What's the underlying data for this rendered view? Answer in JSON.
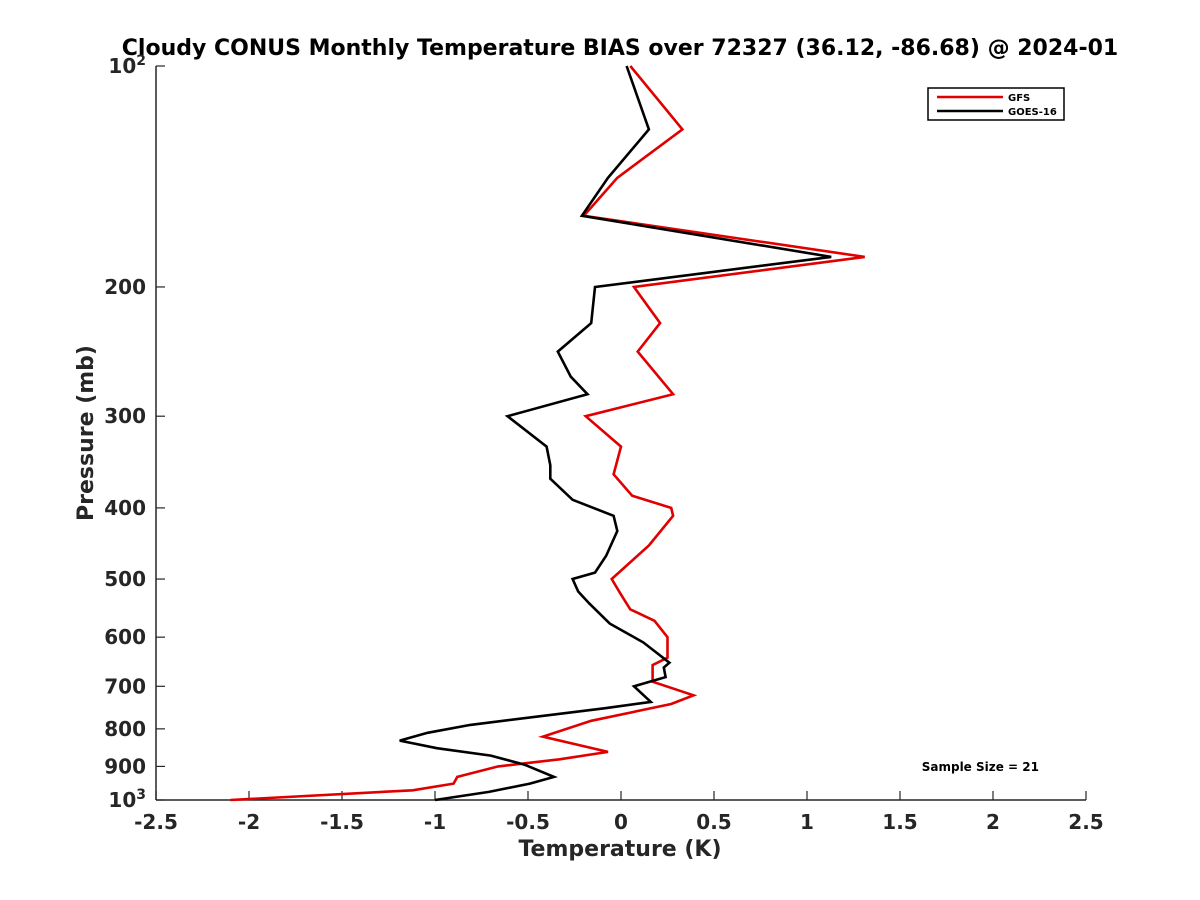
{
  "chart_data": {
    "type": "line",
    "title": "Cloudy CONUS Monthly Temperature BIAS over 72327 (36.12, -86.68) @ 2024-01",
    "xlabel": "Temperature (K)",
    "ylabel": "Pressure (mb)",
    "xlim": [
      -2.5,
      2.5
    ],
    "ylim": [
      100,
      1000
    ],
    "y_scale": "log",
    "y_reversed": true,
    "x_ticks": [
      {
        "value": -2.5,
        "label": "-2.5"
      },
      {
        "value": -2,
        "label": "-2"
      },
      {
        "value": -1.5,
        "label": "-1.5"
      },
      {
        "value": -1,
        "label": "-1"
      },
      {
        "value": -0.5,
        "label": "-0.5"
      },
      {
        "value": 0,
        "label": "0"
      },
      {
        "value": 0.5,
        "label": "0.5"
      },
      {
        "value": 1,
        "label": "1"
      },
      {
        "value": 1.5,
        "label": "1.5"
      },
      {
        "value": 2,
        "label": "2"
      },
      {
        "value": 2.5,
        "label": "2.5"
      }
    ],
    "y_ticks": [
      {
        "value": 100,
        "base": "10",
        "exp": "2"
      },
      {
        "value": 200,
        "label": "200"
      },
      {
        "value": 300,
        "label": "300"
      },
      {
        "value": 400,
        "label": "400"
      },
      {
        "value": 500,
        "label": "500"
      },
      {
        "value": 600,
        "label": "600"
      },
      {
        "value": 700,
        "label": "700"
      },
      {
        "value": 800,
        "label": "800"
      },
      {
        "value": 900,
        "label": "900"
      },
      {
        "value": 1000,
        "base": "10",
        "exp": "3"
      }
    ],
    "grid": false,
    "legend_position": "top-right",
    "annotation": "Sample Size = 21",
    "series": [
      {
        "name": "GFS",
        "color": "#e00000",
        "points": [
          [
            0.05,
            100
          ],
          [
            0.33,
            122
          ],
          [
            -0.02,
            142
          ],
          [
            -0.2,
            160
          ],
          [
            1.31,
            182
          ],
          [
            0.07,
            200
          ],
          [
            0.21,
            224
          ],
          [
            0.09,
            245
          ],
          [
            0.28,
            280
          ],
          [
            -0.19,
            300
          ],
          [
            0.0,
            330
          ],
          [
            -0.04,
            360
          ],
          [
            0.06,
            385
          ],
          [
            0.27,
            400
          ],
          [
            0.28,
            410
          ],
          [
            0.15,
            450
          ],
          [
            -0.05,
            500
          ],
          [
            0.0,
            525
          ],
          [
            0.05,
            550
          ],
          [
            0.18,
            570
          ],
          [
            0.25,
            600
          ],
          [
            0.25,
            640
          ],
          [
            0.17,
            655
          ],
          [
            0.17,
            690
          ],
          [
            0.39,
            720
          ],
          [
            0.27,
            740
          ],
          [
            -0.16,
            780
          ],
          [
            -0.42,
            820
          ],
          [
            -0.07,
            860
          ],
          [
            -0.33,
            880
          ],
          [
            -0.66,
            900
          ],
          [
            -0.88,
            930
          ],
          [
            -0.9,
            950
          ],
          [
            -1.12,
            970
          ],
          [
            -2.1,
            1000
          ]
        ]
      },
      {
        "name": "GOES-16",
        "color": "#000000",
        "points": [
          [
            0.03,
            100
          ],
          [
            0.15,
            122
          ],
          [
            -0.07,
            142
          ],
          [
            -0.21,
            160
          ],
          [
            1.13,
            182
          ],
          [
            -0.14,
            200
          ],
          [
            -0.16,
            224
          ],
          [
            -0.34,
            245
          ],
          [
            -0.27,
            265
          ],
          [
            -0.18,
            280
          ],
          [
            -0.61,
            300
          ],
          [
            -0.4,
            330
          ],
          [
            -0.38,
            350
          ],
          [
            -0.38,
            365
          ],
          [
            -0.26,
            390
          ],
          [
            -0.04,
            410
          ],
          [
            -0.02,
            430
          ],
          [
            -0.08,
            465
          ],
          [
            -0.14,
            490
          ],
          [
            -0.26,
            500
          ],
          [
            -0.23,
            520
          ],
          [
            -0.17,
            540
          ],
          [
            -0.06,
            575
          ],
          [
            0.12,
            610
          ],
          [
            0.26,
            650
          ],
          [
            0.23,
            660
          ],
          [
            0.24,
            680
          ],
          [
            0.07,
            700
          ],
          [
            0.16,
            735
          ],
          [
            -0.09,
            750
          ],
          [
            -0.81,
            790
          ],
          [
            -1.04,
            810
          ],
          [
            -1.19,
            830
          ],
          [
            -0.99,
            850
          ],
          [
            -0.7,
            870
          ],
          [
            -0.52,
            895
          ],
          [
            -0.36,
            930
          ],
          [
            -0.49,
            950
          ],
          [
            -0.71,
            975
          ],
          [
            -1.0,
            1000
          ]
        ]
      }
    ]
  }
}
